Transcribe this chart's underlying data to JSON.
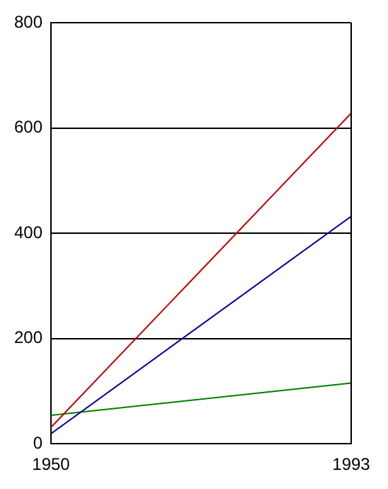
{
  "chart_data": {
    "type": "line",
    "x": [
      1950,
      1993
    ],
    "xlim": [
      1950,
      1993
    ],
    "xticks": [
      1950,
      1993
    ],
    "ylim": [
      0,
      800
    ],
    "yticks": [
      0,
      200,
      400,
      600,
      800
    ],
    "grid": "y",
    "legend": false,
    "marker": "none",
    "line_style": "solid",
    "series": [
      {
        "color": "#c00000",
        "values": [
          31,
          628
        ]
      },
      {
        "color": "#000099",
        "values": [
          19,
          432
        ]
      },
      {
        "color": "#008000",
        "values": [
          54,
          115
        ]
      }
    ]
  }
}
